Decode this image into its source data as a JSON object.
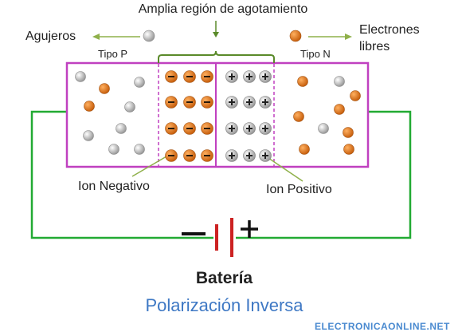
{
  "labels": {
    "top": "Amplia región de agotamiento",
    "holes": "Agujeros",
    "electrons_line1": "Electrones",
    "electrons_line2": "libres",
    "type_p": "Tipo P",
    "type_n": "Tipo N",
    "neg_ion": "Ion Negativo",
    "pos_ion": "Ion Positivo",
    "battery": "Batería",
    "polarization": "Polarización Inversa",
    "website": "ELECTRONICAONLINE.NET",
    "minus_sign": "−",
    "plus_sign": "+"
  },
  "colors": {
    "border": "#c040c0",
    "wire": "#22aa33",
    "battery_plate": "#cc2222",
    "electron": "#e07a1a",
    "hole": "#b8b8b8",
    "pointer": "#8fb04a",
    "title_blue": "#3e78c4"
  }
}
